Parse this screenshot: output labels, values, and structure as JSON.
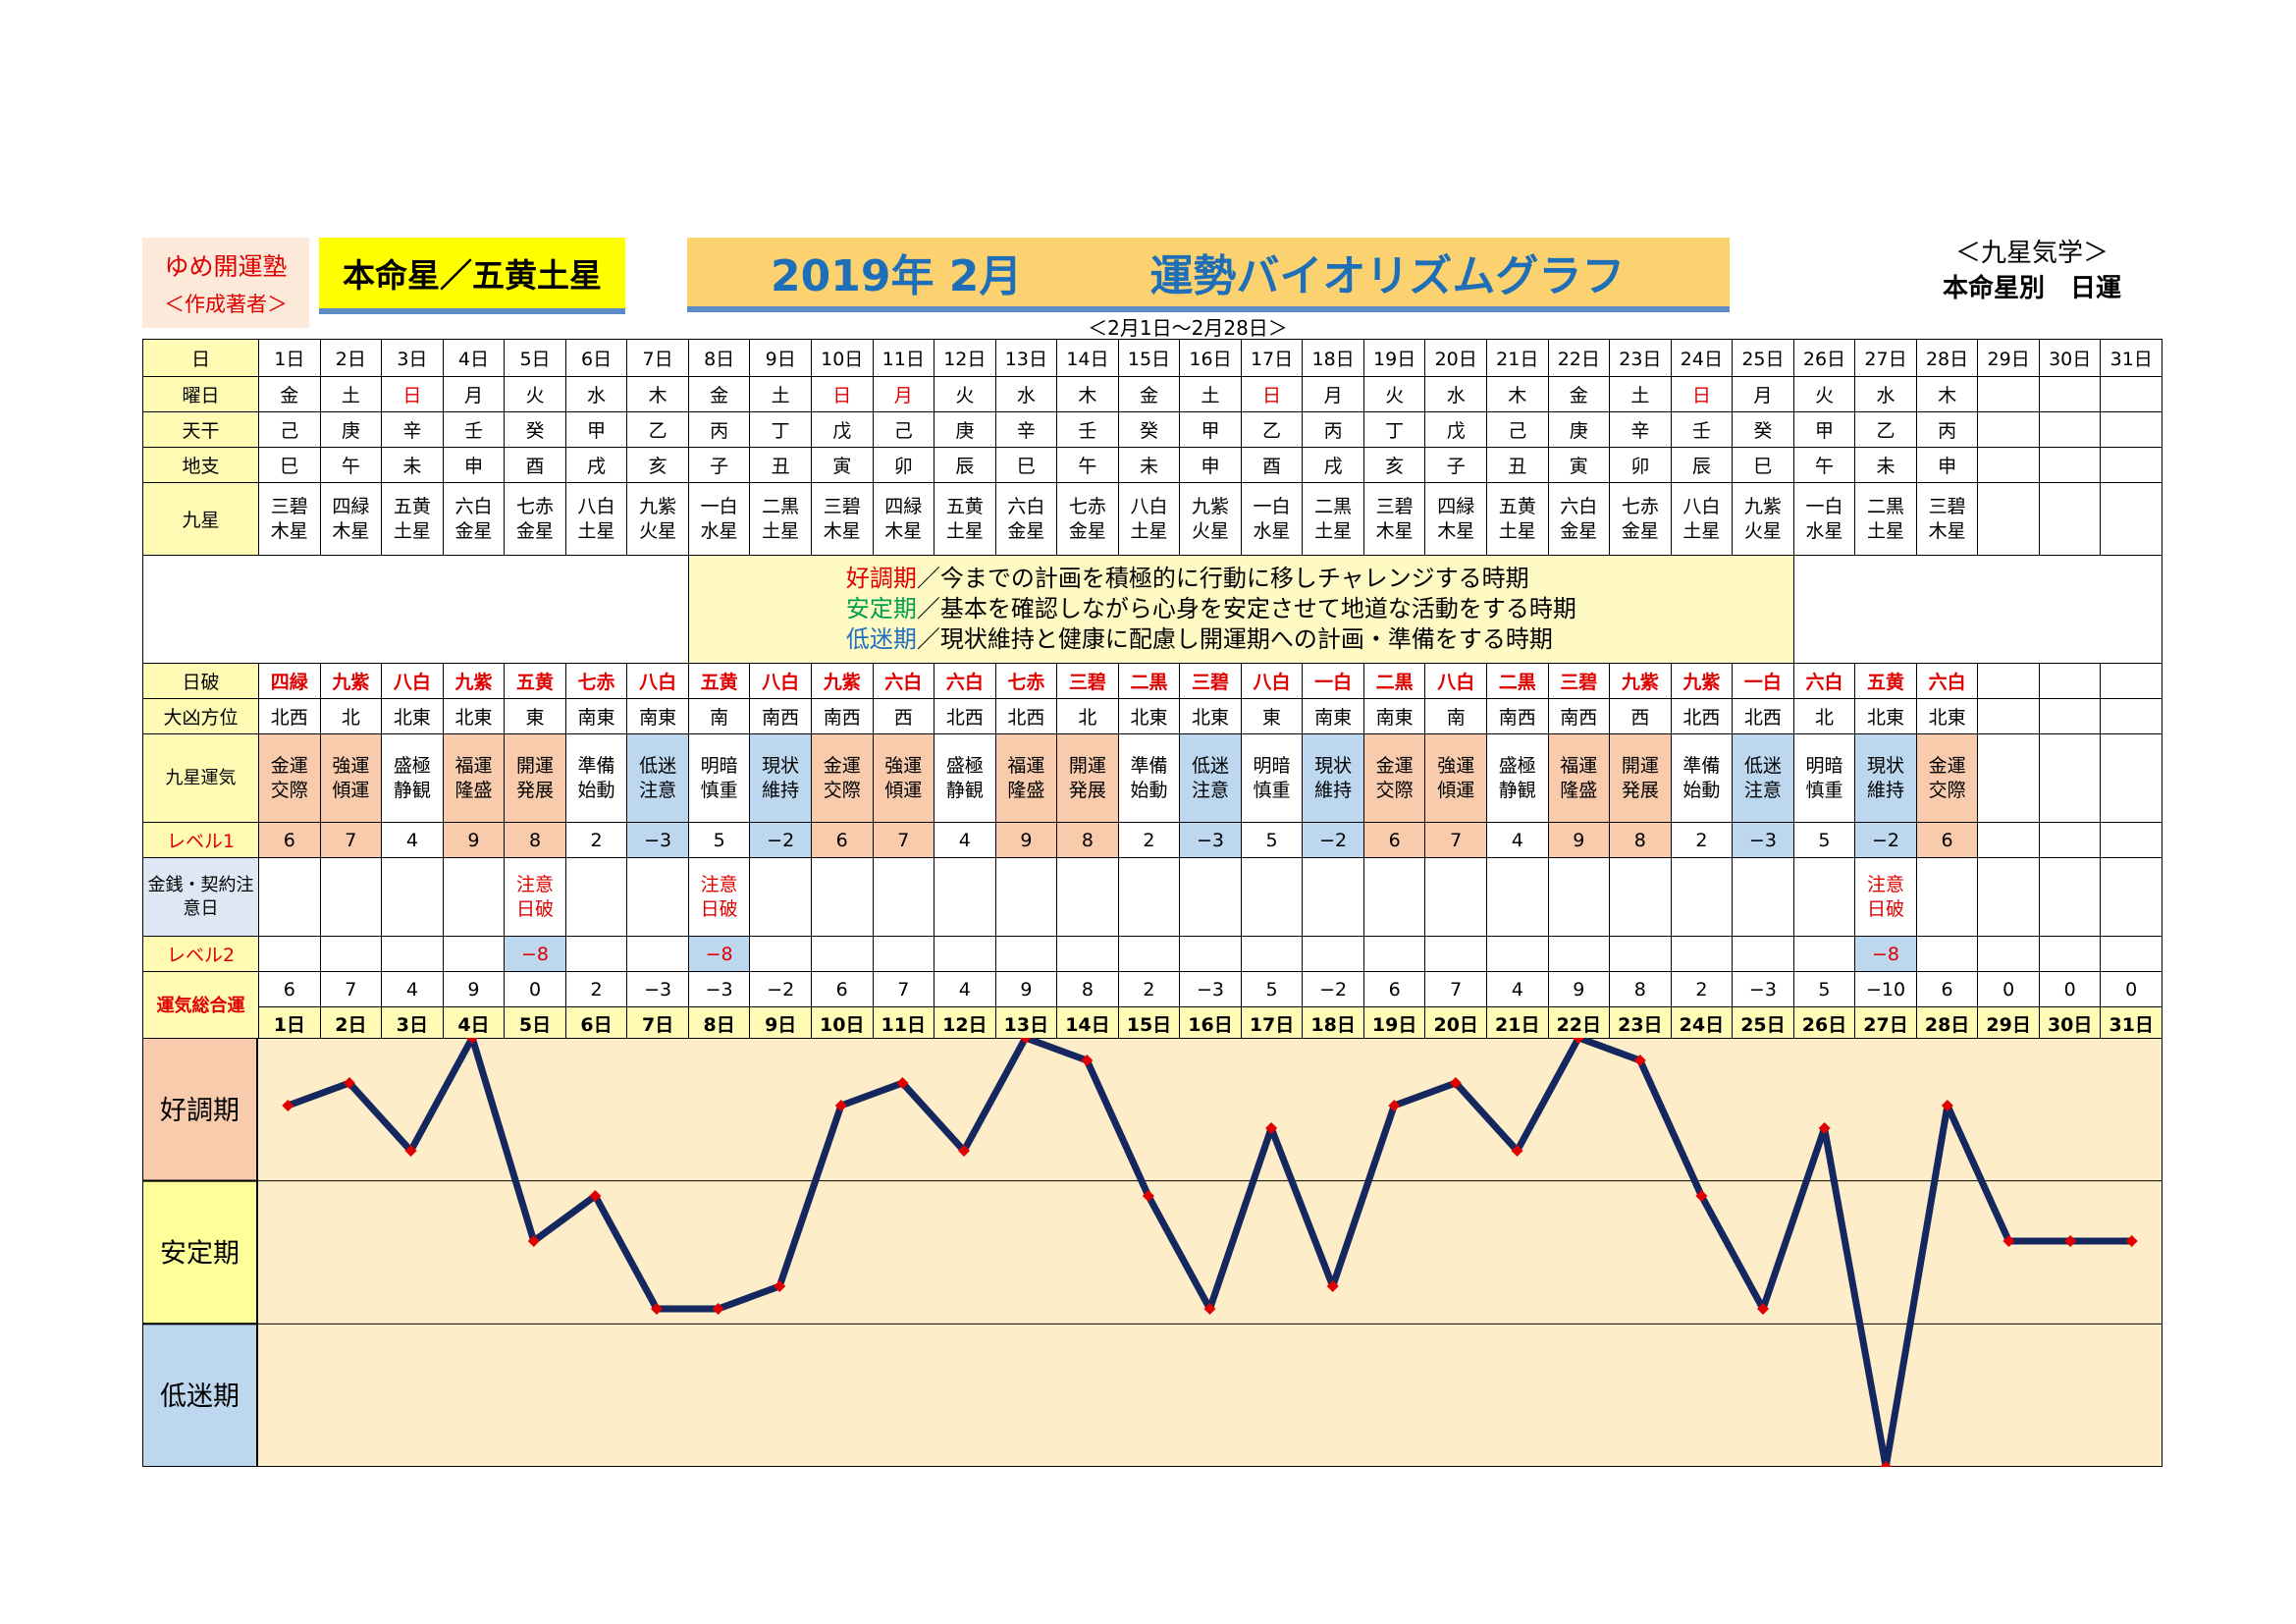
{
  "header": {
    "school": "ゆめ開運塾",
    "author": "＜作成著者＞",
    "star": "本命星／五黄土星",
    "year_month": "2019年 2月",
    "title": "運勢バイオリズムグラフ",
    "range": "＜2月1日～2月28日＞",
    "right_1": "＜九星気学＞",
    "right_2": "本命星別　日運"
  },
  "labels": {
    "day": "日",
    "weekday": "曜日",
    "tenkan": "天干",
    "chishi": "地支",
    "kyusei": "九星",
    "nippa": "日破",
    "daikyo": "大凶方位",
    "kyusei_unki": "九星運気",
    "level1": "レベル1",
    "kinsen": "金銭・契約注意日",
    "level2": "レベル2",
    "total": "運気総合運",
    "zone_good": "好調期",
    "zone_mid": "安定期",
    "zone_bad": "低迷期"
  },
  "messages": [
    {
      "key": "好調期",
      "text": "／今までの計画を積極的に行動に移しチャレンジする時期"
    },
    {
      "key": "安定期",
      "text": "／基本を確認しながら心身を安定させて地道な活動をする時期"
    },
    {
      "key": "低迷期",
      "text": "／現状維持と健康に配慮し開運期への計画・準備をする時期"
    }
  ],
  "days": [
    "1日",
    "2日",
    "3日",
    "4日",
    "5日",
    "6日",
    "7日",
    "8日",
    "9日",
    "10日",
    "11日",
    "12日",
    "13日",
    "14日",
    "15日",
    "16日",
    "17日",
    "18日",
    "19日",
    "20日",
    "21日",
    "22日",
    "23日",
    "24日",
    "25日",
    "26日",
    "27日",
    "28日",
    "29日",
    "30日",
    "31日"
  ],
  "weekday": [
    "金",
    "土",
    "日",
    "月",
    "火",
    "水",
    "木",
    "金",
    "土",
    "日",
    "月",
    "火",
    "水",
    "木",
    "金",
    "土",
    "日",
    "月",
    "火",
    "水",
    "木",
    "金",
    "土",
    "日",
    "月",
    "火",
    "水",
    "木",
    "",
    "",
    ""
  ],
  "tenkan": [
    "己",
    "庚",
    "辛",
    "壬",
    "癸",
    "甲",
    "乙",
    "丙",
    "丁",
    "戊",
    "己",
    "庚",
    "辛",
    "壬",
    "癸",
    "甲",
    "乙",
    "丙",
    "丁",
    "戊",
    "己",
    "庚",
    "辛",
    "壬",
    "癸",
    "甲",
    "乙",
    "丙",
    "",
    "",
    ""
  ],
  "chishi": [
    "巳",
    "午",
    "未",
    "申",
    "酉",
    "戌",
    "亥",
    "子",
    "丑",
    "寅",
    "卯",
    "辰",
    "巳",
    "午",
    "未",
    "申",
    "酉",
    "戌",
    "亥",
    "子",
    "丑",
    "寅",
    "卯",
    "辰",
    "巳",
    "午",
    "未",
    "申",
    "",
    "",
    ""
  ],
  "kyusei": [
    [
      "三碧",
      "木星"
    ],
    [
      "四緑",
      "木星"
    ],
    [
      "五黄",
      "土星"
    ],
    [
      "六白",
      "金星"
    ],
    [
      "七赤",
      "金星"
    ],
    [
      "八白",
      "土星"
    ],
    [
      "九紫",
      "火星"
    ],
    [
      "一白",
      "水星"
    ],
    [
      "二黒",
      "土星"
    ],
    [
      "三碧",
      "木星"
    ],
    [
      "四緑",
      "木星"
    ],
    [
      "五黄",
      "土星"
    ],
    [
      "六白",
      "金星"
    ],
    [
      "七赤",
      "金星"
    ],
    [
      "八白",
      "土星"
    ],
    [
      "九紫",
      "火星"
    ],
    [
      "一白",
      "水星"
    ],
    [
      "二黒",
      "土星"
    ],
    [
      "三碧",
      "木星"
    ],
    [
      "四緑",
      "木星"
    ],
    [
      "五黄",
      "土星"
    ],
    [
      "六白",
      "金星"
    ],
    [
      "七赤",
      "金星"
    ],
    [
      "八白",
      "土星"
    ],
    [
      "九紫",
      "火星"
    ],
    [
      "一白",
      "水星"
    ],
    [
      "二黒",
      "土星"
    ],
    [
      "三碧",
      "木星"
    ],
    [
      "",
      ""
    ],
    [
      "",
      ""
    ],
    [
      "",
      ""
    ]
  ],
  "nippa": [
    "四緑",
    "九紫",
    "八白",
    "九紫",
    "五黄",
    "七赤",
    "八白",
    "五黄",
    "八白",
    "九紫",
    "六白",
    "六白",
    "七赤",
    "三碧",
    "二黒",
    "三碧",
    "八白",
    "一白",
    "二黒",
    "八白",
    "二黒",
    "三碧",
    "九紫",
    "九紫",
    "一白",
    "六白",
    "五黄",
    "六白",
    "",
    "",
    ""
  ],
  "daikyo": [
    "北西",
    "北",
    "北東",
    "北東",
    "東",
    "南東",
    "南東",
    "南",
    "南西",
    "南西",
    "西",
    "北西",
    "北西",
    "北",
    "北東",
    "北東",
    "東",
    "南東",
    "南東",
    "南",
    "南西",
    "南西",
    "西",
    "北西",
    "北西",
    "北",
    "北東",
    "北東",
    "",
    "",
    ""
  ],
  "unki": [
    [
      "金運",
      "交際"
    ],
    [
      "強運",
      "傾運"
    ],
    [
      "盛極",
      "静観"
    ],
    [
      "福運",
      "隆盛"
    ],
    [
      "開運",
      "発展"
    ],
    [
      "準備",
      "始動"
    ],
    [
      "低迷",
      "注意"
    ],
    [
      "明暗",
      "慎重"
    ],
    [
      "現状",
      "維持"
    ],
    [
      "金運",
      "交際"
    ],
    [
      "強運",
      "傾運"
    ],
    [
      "盛極",
      "静観"
    ],
    [
      "福運",
      "隆盛"
    ],
    [
      "開運",
      "発展"
    ],
    [
      "準備",
      "始動"
    ],
    [
      "低迷",
      "注意"
    ],
    [
      "明暗",
      "慎重"
    ],
    [
      "現状",
      "維持"
    ],
    [
      "金運",
      "交際"
    ],
    [
      "強運",
      "傾運"
    ],
    [
      "盛極",
      "静観"
    ],
    [
      "福運",
      "隆盛"
    ],
    [
      "開運",
      "発展"
    ],
    [
      "準備",
      "始動"
    ],
    [
      "低迷",
      "注意"
    ],
    [
      "明暗",
      "慎重"
    ],
    [
      "現状",
      "維持"
    ],
    [
      "金運",
      "交際"
    ],
    [
      "",
      ""
    ],
    [
      "",
      ""
    ],
    [
      "",
      ""
    ]
  ],
  "level1": [
    "6",
    "7",
    "4",
    "9",
    "8",
    "2",
    "−3",
    "5",
    "−2",
    "6",
    "7",
    "4",
    "9",
    "8",
    "2",
    "−3",
    "5",
    "−2",
    "6",
    "7",
    "4",
    "9",
    "8",
    "2",
    "−3",
    "5",
    "−2",
    "6",
    "",
    "",
    ""
  ],
  "notes": [
    "",
    "",
    "",
    "",
    [
      "注意",
      "日破"
    ],
    "",
    "",
    [
      "注意",
      "日破"
    ],
    "",
    "",
    "",
    "",
    "",
    "",
    "",
    "",
    "",
    "",
    "",
    "",
    "",
    "",
    "",
    "",
    "",
    "",
    [
      "注意",
      "日破"
    ],
    "",
    "",
    "",
    ""
  ],
  "level2": [
    "",
    "",
    "",
    "",
    "−8",
    "",
    "",
    "−8",
    "",
    "",
    "",
    "",
    "",
    "",
    "",
    "",
    "",
    "",
    "",
    "",
    "",
    "",
    "",
    "",
    "",
    "",
    "−8",
    "",
    "",
    "",
    ""
  ],
  "colors": {
    "good": "#f8cbad",
    "bad": "#bdd7ee",
    "line": "#14285f",
    "marker": "#e00000",
    "plot_bg": "#fdedc8"
  },
  "chart_data": {
    "type": "line",
    "title": "運勢バイオリズムグラフ",
    "categories": [
      "1日",
      "2日",
      "3日",
      "4日",
      "5日",
      "6日",
      "7日",
      "8日",
      "9日",
      "10日",
      "11日",
      "12日",
      "13日",
      "14日",
      "15日",
      "16日",
      "17日",
      "18日",
      "19日",
      "20日",
      "21日",
      "22日",
      "23日",
      "24日",
      "25日",
      "26日",
      "27日",
      "28日",
      "29日",
      "30日",
      "31日"
    ],
    "values": [
      6,
      7,
      4,
      9,
      0,
      2,
      -3,
      -3,
      -2,
      6,
      7,
      4,
      9,
      8,
      2,
      -3,
      5,
      -2,
      6,
      7,
      4,
      9,
      8,
      2,
      -3,
      5,
      -10,
      6,
      0,
      0,
      0
    ],
    "ylim": [
      -10,
      9
    ],
    "zones": [
      "好調期",
      "安定期",
      "低迷期"
    ]
  }
}
